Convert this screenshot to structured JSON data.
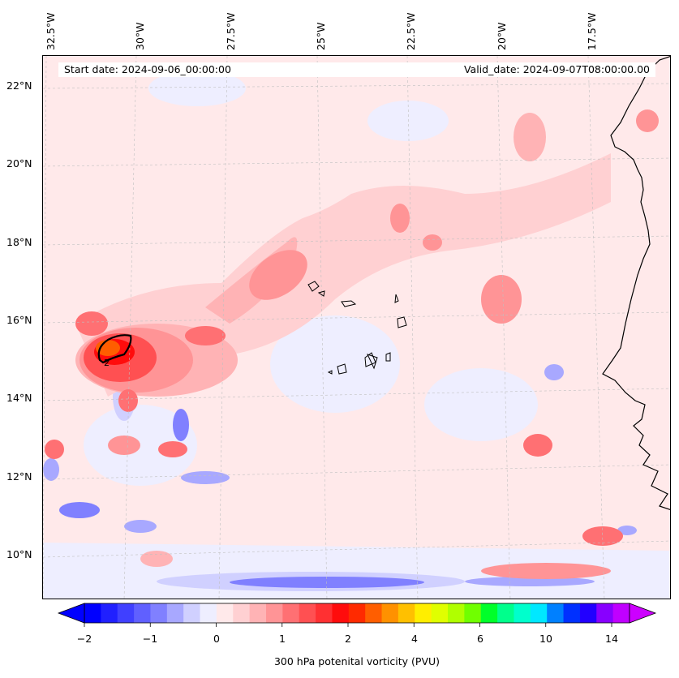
{
  "header": {
    "start_date": "Start date: 2024-09-06_00:00:00",
    "valid_date": "Valid_date: 2024-09-07T08:00:00.00"
  },
  "axes": {
    "longitude_labels": [
      "32.5°W",
      "30°W",
      "27.5°W",
      "25°W",
      "22.5°W",
      "20°W",
      "17.5°W"
    ],
    "latitude_labels": [
      "22°N",
      "20°N",
      "18°N",
      "16°N",
      "14°N",
      "12°N",
      "10°N"
    ]
  },
  "colorbar": {
    "label": "300 hPa potenital vorticity (PVU)",
    "tick_labels": [
      "−2",
      "−1",
      "0",
      "1",
      "2",
      "4",
      "6",
      "10",
      "14"
    ],
    "colors": [
      "#0000ff",
      "#2020ff",
      "#4040ff",
      "#6060ff",
      "#8080ff",
      "#a8a8ff",
      "#d0d0ff",
      "#eeeeff",
      "#ffe9ea",
      "#ffd0d2",
      "#ffb3b5",
      "#ff9496",
      "#ff7073",
      "#ff5052",
      "#ff3032",
      "#ff0c0c",
      "#ff2a00",
      "#ff5e00",
      "#ff9100",
      "#ffc000",
      "#ffee00",
      "#e0ff00",
      "#b0ff00",
      "#70ff00",
      "#00ff2a",
      "#00ff8c",
      "#00ffcc",
      "#00e8ff",
      "#0080ff",
      "#0030ff",
      "#2200ff",
      "#8800ff",
      "#c000ff"
    ],
    "extend_low_color": "#0000ff",
    "extend_high_color": "#cc00ff"
  },
  "map": {
    "contour_label": "2",
    "features": [
      "cape-verde-islands",
      "west-africa-coastline",
      "pv-maximum-high"
    ]
  }
}
